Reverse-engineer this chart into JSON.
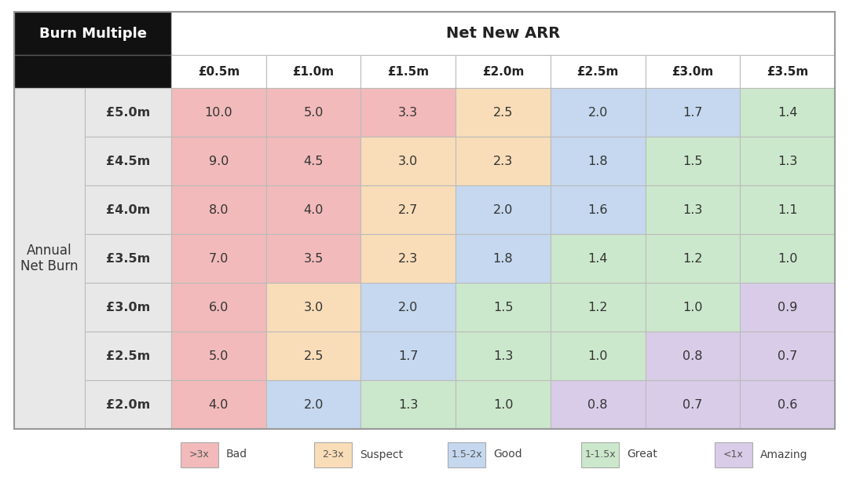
{
  "title_net_new_arr": "Net New ARR",
  "row_label_title": "Annual\nNet Burn",
  "col_header_title": "Burn Multiple",
  "col_headers": [
    "£0.5m",
    "£1.0m",
    "£1.5m",
    "£2.0m",
    "£2.5m",
    "£3.0m",
    "£3.5m"
  ],
  "row_headers": [
    "£5.0m",
    "£4.5m",
    "£4.0m",
    "£3.5m",
    "£3.0m",
    "£2.5m",
    "£2.0m"
  ],
  "values": [
    [
      10.0,
      5.0,
      3.3,
      2.5,
      2.0,
      1.7,
      1.4
    ],
    [
      9.0,
      4.5,
      3.0,
      2.3,
      1.8,
      1.5,
      1.3
    ],
    [
      8.0,
      4.0,
      2.7,
      2.0,
      1.6,
      1.3,
      1.1
    ],
    [
      7.0,
      3.5,
      2.3,
      1.8,
      1.4,
      1.2,
      1.0
    ],
    [
      6.0,
      3.0,
      2.0,
      1.5,
      1.2,
      1.0,
      0.9
    ],
    [
      5.0,
      2.5,
      1.7,
      1.3,
      1.0,
      0.8,
      0.7
    ],
    [
      4.0,
      2.0,
      1.3,
      1.0,
      0.8,
      0.7,
      0.6
    ]
  ],
  "color_bad": "#f2baba",
  "color_suspect": "#f9ddb8",
  "color_good": "#c5d8f0",
  "color_great": "#cce8cc",
  "color_amazing": "#d8cce8",
  "color_header_bg": "#111111",
  "color_header_text": "#ffffff",
  "color_row_label_bg": "#e8e8e8",
  "color_border": "#bbbbbb",
  "legend_labels": [
    ">3x",
    "2-3x",
    "1.5-2x",
    "1-1.5x",
    "<1x"
  ],
  "legend_names": [
    "Bad",
    "Suspect",
    "Good",
    "Great",
    "Amazing"
  ],
  "background_color": "#ffffff",
  "value_thresholds": [
    3.0,
    2.0,
    1.5,
    1.0
  ]
}
